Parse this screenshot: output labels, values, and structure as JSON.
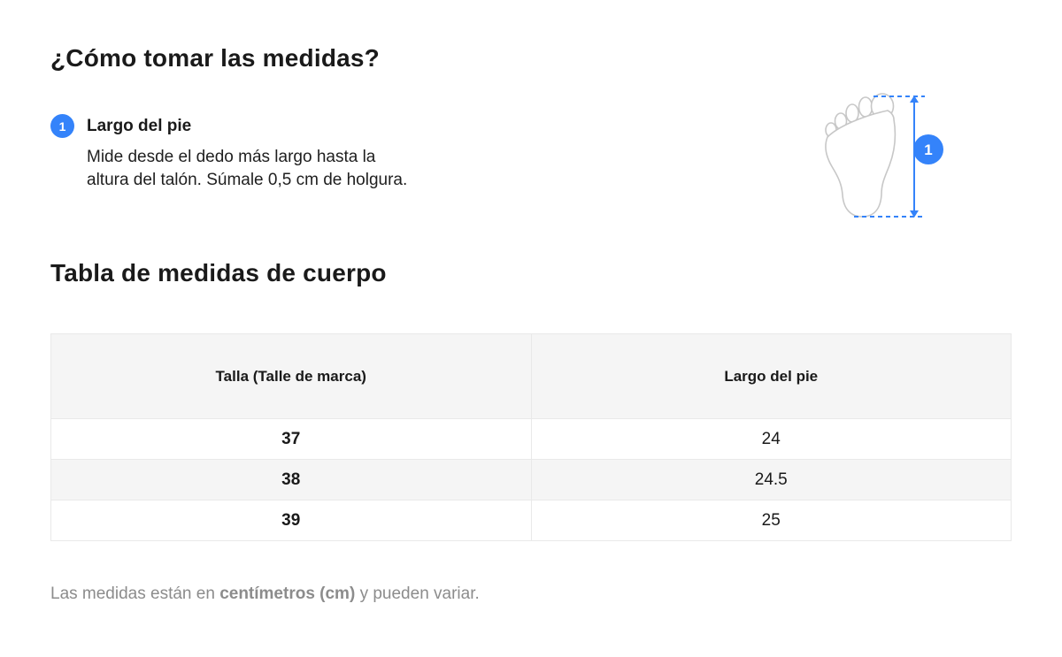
{
  "colors": {
    "accent": "#3483fa",
    "foot_outline": "#c7c7c7",
    "table_header_bg": "#f5f5f5",
    "row_alt_bg": "#f5f5f5",
    "border": "#e9e9e9",
    "muted_text": "#8c8c8c"
  },
  "page_title": "¿Cómo tomar las medidas?",
  "step": {
    "badge": "1",
    "title": "Largo del pie",
    "description_lines": [
      "Mide desde el dedo más largo hasta la",
      "altura del talón. Súmale 0,5 cm de holgura."
    ]
  },
  "diagram": {
    "icon": "foot-sole-outline",
    "badge_label": "1"
  },
  "table_section": {
    "title": "Tabla de medidas de cuerpo",
    "columns": [
      "Talla (Talle de marca)",
      "Largo del pie"
    ],
    "rows": [
      [
        "37",
        "24"
      ],
      [
        "38",
        "24.5"
      ],
      [
        "39",
        "25"
      ]
    ]
  },
  "footnote": {
    "prefix": "Las medidas están en ",
    "bold": "centímetros (cm)",
    "suffix": " y pueden variar."
  }
}
